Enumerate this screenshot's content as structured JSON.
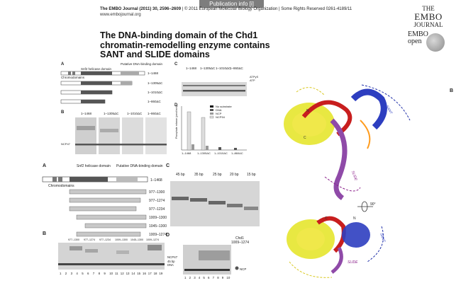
{
  "header": {
    "tab_label": "Publication info [i]",
    "journal_line_bold": "The EMBO Journal (2011) 30, 2596–2609",
    "journal_line_rest": " | © 2011 European Molecular Biology Organization | Some Rights Reserved 0261-4189/11",
    "website": "www.embojournal.org"
  },
  "logos": {
    "the": "THE",
    "embo": "EMBO",
    "journal": "JOURNAL",
    "open_embo": "EMBO",
    "open_text": "open"
  },
  "paper": {
    "title_line1": "The DNA-binding domain of the Chd1",
    "title_line2": "chromatin-remodelling enzyme contains",
    "title_line3": "SANT and SLIDE domains"
  },
  "figure_top": {
    "panel_a": "A",
    "panel_b": "B",
    "panel_c": "C",
    "panel_d": "D",
    "helicase_label": "Snf2 helicase domain",
    "dna_domain_label": "Putative DNA-binding domain",
    "chromo_label": "Chromodomains",
    "constructs": [
      "1–1468",
      "1–1305ΔC",
      "1–1010ΔC",
      "1–860ΔC"
    ],
    "gel_b_headers": [
      "1–1468",
      "1–1305ΔC",
      "1–1010ΔC",
      "1–860ΔC"
    ],
    "gel_c_headers": [
      "1–1468",
      "1–1305ΔC",
      "1–1010ΔC",
      "1–860ΔC"
    ],
    "ncp_label": "NCP47",
    "atp_label1": "ATPγS",
    "atp_label2": "ATP",
    "legend": [
      "No substrate",
      "DNA",
      "NCP",
      "NCP54"
    ],
    "ylabel_d": "Phosphate release (pmol/min)",
    "xlabels_d": [
      "1–1468",
      "1–1305ΔC",
      "1–1010ΔC",
      "1–860ΔC"
    ]
  },
  "figure_bottom": {
    "panel_a": "A",
    "panel_b": "B",
    "panel_c": "C",
    "panel_d": "D",
    "helicase_label": "Snf2 helicase domain",
    "dna_domain_label": "Putative DNA-binding domain",
    "chromo_label": "Chromodomains",
    "full_length": "1–1468",
    "constructs": [
      "977–1300",
      "977–1274",
      "977–1234",
      "1009–1300",
      "1045–1300",
      "1009–1274"
    ],
    "gel_b_headers": [
      "977–1300",
      "977–1274",
      "977–1234",
      "1009–1300",
      "1045–1300",
      "1009–1274"
    ],
    "gel_c_headers": [
      "45 bp",
      "35 bp",
      "25 bp",
      "20 bp",
      "15 bp"
    ],
    "dna_label_1": "45 bp",
    "dna_label_2": "DNA",
    "chd1_label_1": "Chd1",
    "chd1_label_2": "1009–1274",
    "ncp47_label": "NCP47",
    "ncp_label": "NCP",
    "lanes_b": [
      "1",
      "2",
      "3",
      "4",
      "5",
      "6",
      "7",
      "8",
      "9",
      "10",
      "11",
      "12",
      "13",
      "14",
      "15",
      "16",
      "17",
      "18",
      "19"
    ],
    "lanes_d": [
      "1",
      "2",
      "3",
      "4",
      "5",
      "6",
      "7",
      "8",
      "9",
      "10"
    ]
  },
  "structure": {
    "panel_b": "B",
    "angle": "90°",
    "labels_top": [
      "SANT",
      "SLIDE",
      "N",
      "C"
    ],
    "labels_bottom": [
      "SANT",
      "SLIDE",
      "N",
      "C"
    ]
  }
}
